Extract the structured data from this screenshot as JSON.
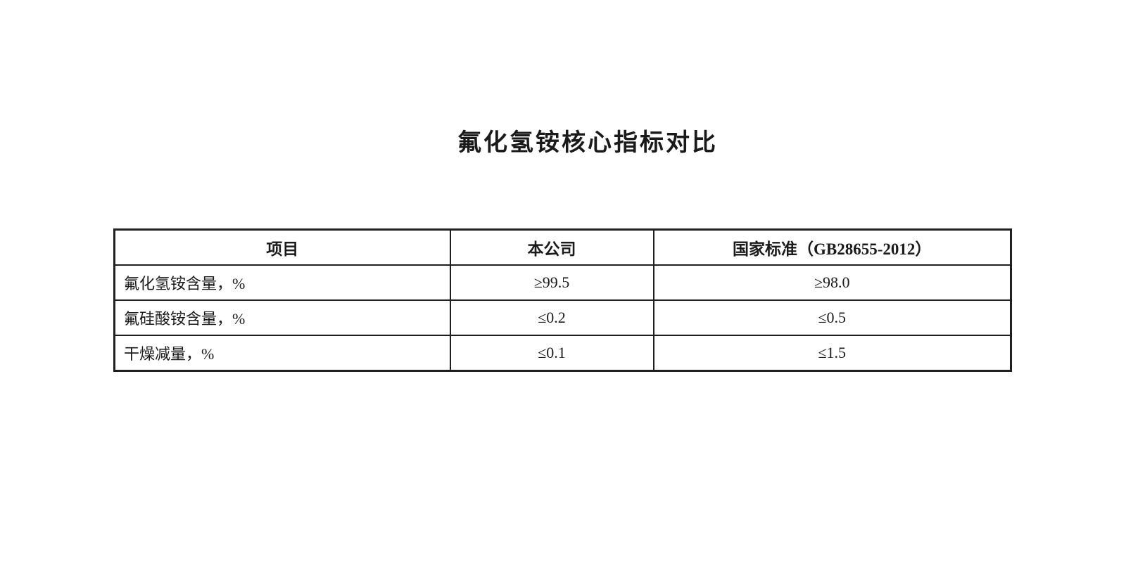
{
  "page": {
    "title": "氟化氢铵核心指标对比",
    "background_color": "#ffffff",
    "text_color": "#1a1a1a",
    "border_color": "#1f1f1f"
  },
  "table": {
    "columns": [
      {
        "label": "项目"
      },
      {
        "label": "本公司"
      },
      {
        "label": "国家标准（GB28655-2012）"
      }
    ],
    "rows": [
      {
        "item": "氟化氢铵含量，%",
        "company": "≥99.5",
        "standard": "≥98.0"
      },
      {
        "item": "氟硅酸铵含量，%",
        "company": "≤0.2",
        "standard": "≤0.5"
      },
      {
        "item": "干燥减量，%",
        "company": "≤0.1",
        "standard": "≤1.5"
      }
    ]
  }
}
